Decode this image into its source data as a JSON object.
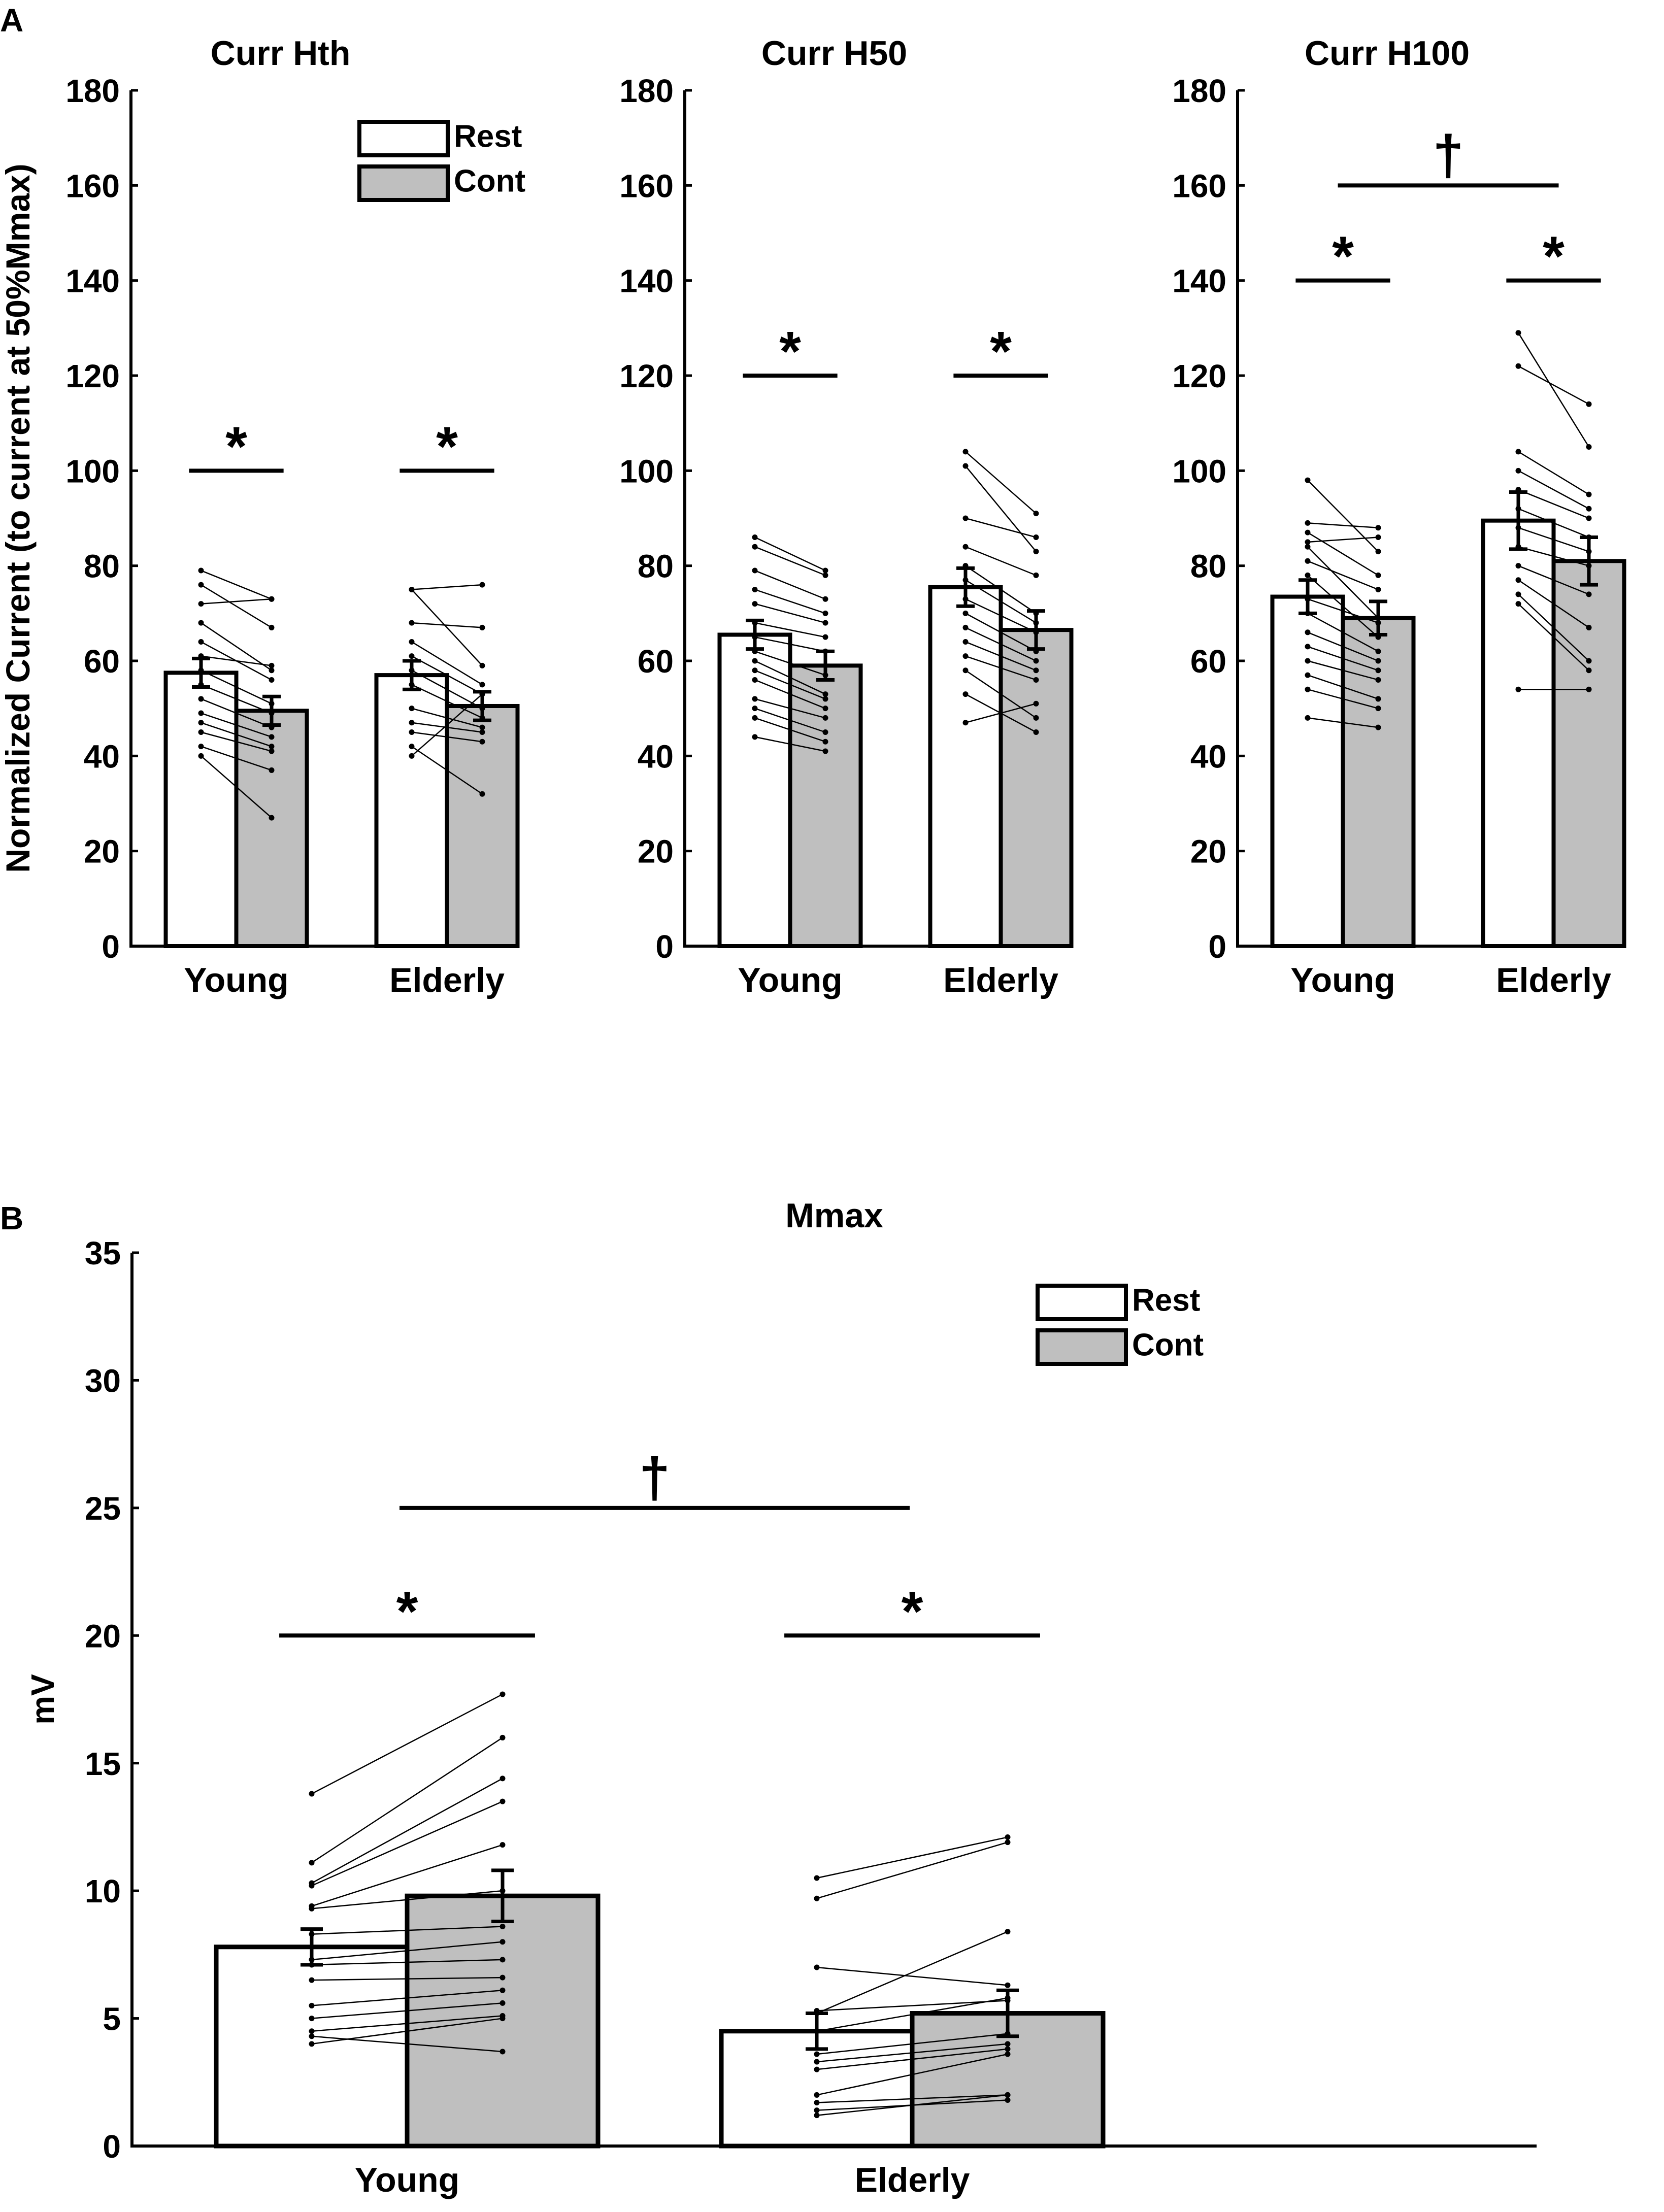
{
  "colors": {
    "rest": "#ffffff",
    "cont": "#bfbfbf",
    "ink": "#000000"
  },
  "panel_labels": [
    "A",
    "B"
  ],
  "chart_data": [
    {
      "type": "bar",
      "panel": "A",
      "title": "Curr Hth",
      "ylabel": "Normalized Current (to current at 50%Mmax)",
      "categories": [
        "Young",
        "Elderly"
      ],
      "ylim": [
        0,
        180
      ],
      "yticks": [
        "0",
        "20",
        "40",
        "60",
        "80",
        "100",
        "120",
        "140",
        "160",
        "180"
      ],
      "series": [
        {
          "name": "Rest",
          "values": [
            57.5,
            57
          ],
          "sem": [
            3,
            3
          ]
        },
        {
          "name": "Cont",
          "values": [
            49.5,
            50.5
          ],
          "sem": [
            3,
            3
          ]
        }
      ],
      "individuals": [
        [
          [
            79,
            73
          ],
          [
            76,
            67
          ],
          [
            72,
            73
          ],
          [
            68,
            58
          ],
          [
            64,
            56
          ],
          [
            61,
            59
          ],
          [
            58,
            51
          ],
          [
            55,
            49
          ],
          [
            52,
            46
          ],
          [
            49,
            44
          ],
          [
            47,
            42
          ],
          [
            45,
            41
          ],
          [
            42,
            37
          ],
          [
            40,
            27
          ]
        ],
        [
          [
            75,
            76
          ],
          [
            75,
            59
          ],
          [
            68,
            67
          ],
          [
            64,
            55
          ],
          [
            61,
            53
          ],
          [
            58,
            50
          ],
          [
            55,
            48
          ],
          [
            50,
            46
          ],
          [
            47,
            45
          ],
          [
            45,
            43
          ],
          [
            42,
            32
          ],
          [
            40,
            53
          ]
        ]
      ],
      "legend": [
        "Rest",
        "Cont"
      ],
      "legend_pos": "top-right",
      "annotations": [
        {
          "text": "*",
          "type": "sig",
          "x1": 0,
          "x2": 1,
          "y": 100
        },
        {
          "text": "*",
          "type": "sig",
          "x1": 2,
          "x2": 3,
          "y": 100
        }
      ]
    },
    {
      "type": "bar",
      "panel": "A",
      "title": "Curr H50",
      "ylabel": "",
      "categories": [
        "Young",
        "Elderly"
      ],
      "ylim": [
        0,
        180
      ],
      "yticks": [
        "0",
        "20",
        "40",
        "60",
        "80",
        "100",
        "120",
        "140",
        "160",
        "180"
      ],
      "series": [
        {
          "name": "Rest",
          "values": [
            65.5,
            75.5
          ],
          "sem": [
            3,
            4
          ]
        },
        {
          "name": "Cont",
          "values": [
            59,
            66.5
          ],
          "sem": [
            3,
            4
          ]
        }
      ],
      "individuals": [
        [
          [
            86,
            79
          ],
          [
            84,
            78
          ],
          [
            79,
            73
          ],
          [
            75,
            70
          ],
          [
            72,
            68
          ],
          [
            68,
            65
          ],
          [
            65,
            62
          ],
          [
            62,
            57
          ],
          [
            60,
            53
          ],
          [
            58,
            52
          ],
          [
            56,
            50
          ],
          [
            52,
            48
          ],
          [
            50,
            45
          ],
          [
            48,
            43
          ],
          [
            44,
            41
          ]
        ],
        [
          [
            104,
            91
          ],
          [
            101,
            83
          ],
          [
            90,
            86
          ],
          [
            84,
            78
          ],
          [
            80,
            70
          ],
          [
            77,
            68
          ],
          [
            73,
            66
          ],
          [
            70,
            62
          ],
          [
            67,
            60
          ],
          [
            64,
            58
          ],
          [
            61,
            56
          ],
          [
            58,
            48
          ],
          [
            53,
            45
          ],
          [
            47,
            51
          ]
        ]
      ],
      "annotations": [
        {
          "text": "*",
          "type": "sig",
          "x1": 0,
          "x2": 1,
          "y": 120
        },
        {
          "text": "*",
          "type": "sig",
          "x1": 2,
          "x2": 3,
          "y": 120
        }
      ]
    },
    {
      "type": "bar",
      "panel": "A",
      "title": "Curr H100",
      "ylabel": "",
      "categories": [
        "Young",
        "Elderly"
      ],
      "ylim": [
        0,
        180
      ],
      "yticks": [
        "0",
        "20",
        "40",
        "60",
        "80",
        "100",
        "120",
        "140",
        "160",
        "180"
      ],
      "series": [
        {
          "name": "Rest",
          "values": [
            73.5,
            89.5
          ],
          "sem": [
            3.5,
            6
          ]
        },
        {
          "name": "Cont",
          "values": [
            69,
            81
          ],
          "sem": [
            3.5,
            5
          ]
        }
      ],
      "individuals": [
        [
          [
            98,
            83
          ],
          [
            89,
            88
          ],
          [
            87,
            78
          ],
          [
            85,
            86
          ],
          [
            84,
            69
          ],
          [
            81,
            75
          ],
          [
            78,
            65
          ],
          [
            73,
            68
          ],
          [
            70,
            62
          ],
          [
            66,
            60
          ],
          [
            63,
            58
          ],
          [
            60,
            56
          ],
          [
            57,
            52
          ],
          [
            54,
            50
          ],
          [
            48,
            46
          ]
        ],
        [
          [
            129,
            105
          ],
          [
            122,
            114
          ],
          [
            104,
            95
          ],
          [
            100,
            92
          ],
          [
            96,
            90
          ],
          [
            92,
            86
          ],
          [
            88,
            83
          ],
          [
            84,
            80
          ],
          [
            80,
            74
          ],
          [
            77,
            67
          ],
          [
            74,
            60
          ],
          [
            72,
            58
          ],
          [
            54,
            54
          ]
        ]
      ],
      "annotations": [
        {
          "text": "*",
          "type": "sig",
          "x1": 0,
          "x2": 1,
          "y": 140
        },
        {
          "text": "*",
          "type": "sig",
          "x1": 2,
          "x2": 3,
          "y": 140
        },
        {
          "text": "†",
          "type": "dagger",
          "x1": 0.5,
          "x2": 2.5,
          "y": 160
        }
      ]
    },
    {
      "type": "bar",
      "panel": "B",
      "title": "Mmax",
      "ylabel": "mV",
      "categories": [
        "Young",
        "Elderly"
      ],
      "ylim": [
        0,
        35
      ],
      "yticks": [
        "0",
        "5",
        "10",
        "15",
        "20",
        "25",
        "30",
        "35"
      ],
      "series": [
        {
          "name": "Rest",
          "values": [
            7.8,
            4.5
          ],
          "sem": [
            0.7,
            0.7
          ]
        },
        {
          "name": "Cont",
          "values": [
            9.8,
            5.2
          ],
          "sem": [
            1,
            0.9
          ]
        }
      ],
      "individuals": [
        [
          [
            13.8,
            17.7
          ],
          [
            11.1,
            16.0
          ],
          [
            10.3,
            14.4
          ],
          [
            10.2,
            13.5
          ],
          [
            9.4,
            11.8
          ],
          [
            9.3,
            10.0
          ],
          [
            8.3,
            8.6
          ],
          [
            7.3,
            8.0
          ],
          [
            7.1,
            7.3
          ],
          [
            6.5,
            6.6
          ],
          [
            5.5,
            6.1
          ],
          [
            5.0,
            5.6
          ],
          [
            4.5,
            5.1
          ],
          [
            4.3,
            3.7
          ],
          [
            4.0,
            5.0
          ]
        ],
        [
          [
            10.5,
            12.1
          ],
          [
            9.7,
            11.9
          ],
          [
            7.0,
            6.3
          ],
          [
            5.3,
            5.7
          ],
          [
            5.2,
            8.4
          ],
          [
            4.5,
            5.8
          ],
          [
            3.6,
            4.4
          ],
          [
            3.3,
            4.0
          ],
          [
            3.0,
            3.8
          ],
          [
            2.0,
            3.6
          ],
          [
            1.7,
            2.0
          ],
          [
            1.4,
            1.8
          ],
          [
            1.2,
            2.0
          ]
        ]
      ],
      "legend": [
        "Rest",
        "Cont"
      ],
      "legend_pos": "top-right",
      "annotations": [
        {
          "text": "*",
          "type": "sig",
          "x1": 0,
          "x2": 1,
          "y": 20
        },
        {
          "text": "*",
          "type": "sig",
          "x1": 2,
          "x2": 3,
          "y": 20
        },
        {
          "text": "†",
          "type": "dagger",
          "x1": 0,
          "x2": 3,
          "y": 25
        }
      ]
    }
  ]
}
